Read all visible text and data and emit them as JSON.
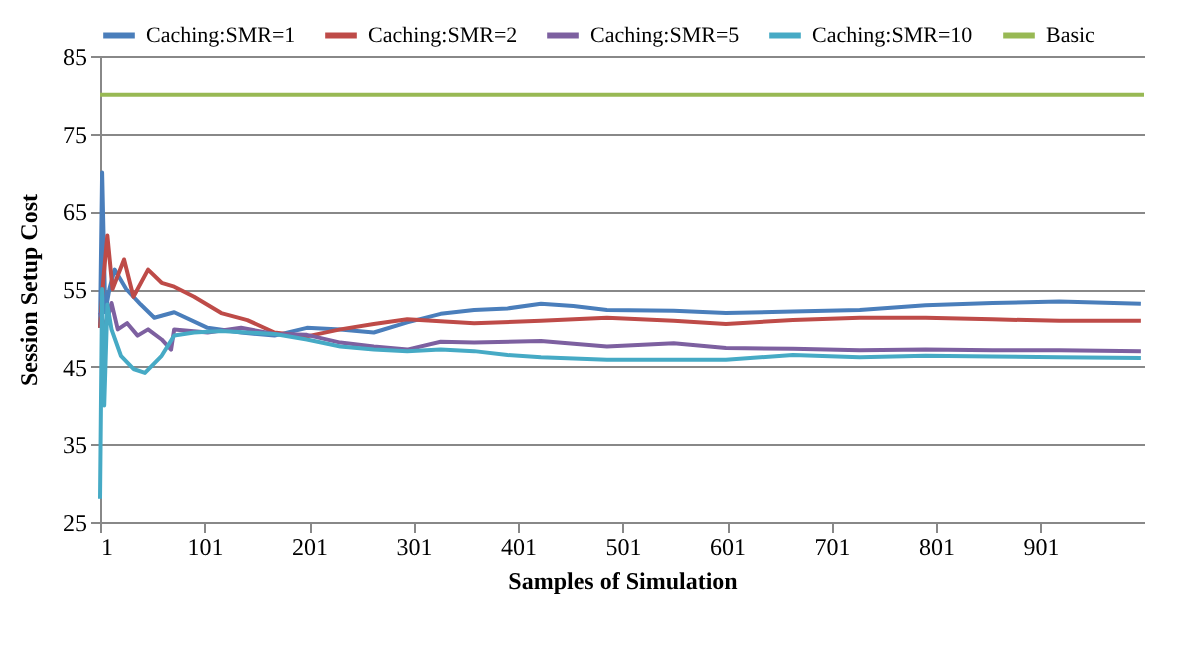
{
  "chart_data": {
    "type": "line",
    "xlabel": "Samples of Simulation",
    "ylabel": "Session Setup Cost",
    "xlim": [
      1,
      1000
    ],
    "ylim": [
      25,
      85
    ],
    "xticks": [
      1,
      101,
      201,
      301,
      401,
      501,
      601,
      701,
      801,
      901
    ],
    "yticks": [
      25,
      35,
      45,
      55,
      65,
      75,
      85
    ],
    "grid": "y",
    "legend": "top",
    "line_style": "solid",
    "marker": "none",
    "series": [
      {
        "name": "Caching:SMR=1",
        "color": "#4a7ebb",
        "x": [
          1,
          3,
          6,
          10,
          15,
          26,
          40,
          53,
          72,
          104,
          136,
          168,
          199,
          231,
          263,
          295,
          327,
          359,
          391,
          423,
          454,
          486,
          550,
          600,
          664,
          728,
          791,
          855,
          919,
          997
        ],
        "values": [
          50,
          70,
          52,
          55,
          57.5,
          55,
          53,
          51.3,
          52,
          50,
          49.4,
          49,
          50,
          49.8,
          49.4,
          50.7,
          51.8,
          52.3,
          52.5,
          53.1,
          52.8,
          52.3,
          52.2,
          51.9,
          52.1,
          52.3,
          52.9,
          53.2,
          53.4,
          53.1
        ]
      },
      {
        "name": "Caching:SMR=2",
        "color": "#be4b48",
        "x": [
          1,
          4,
          8,
          13,
          24,
          33,
          47,
          60,
          72,
          91,
          117,
          142,
          168,
          199,
          231,
          263,
          295,
          359,
          423,
          486,
          550,
          600,
          664,
          728,
          791,
          855,
          919,
          997
        ],
        "values": [
          50,
          56,
          61.9,
          55,
          58.8,
          54,
          57.5,
          55.8,
          55.3,
          54,
          51.9,
          51,
          49.4,
          48.9,
          49.8,
          50.5,
          51.1,
          50.6,
          50.9,
          51.3,
          50.9,
          50.5,
          51,
          51.3,
          51.3,
          51.1,
          50.9,
          50.9
        ]
      },
      {
        "name": "Caching:SMR=5",
        "color": "#7d60a0",
        "x": [
          1,
          6,
          12,
          18,
          27,
          37,
          47,
          60,
          69,
          72,
          104,
          136,
          168,
          199,
          231,
          263,
          295,
          327,
          359,
          423,
          486,
          550,
          600,
          664,
          728,
          791,
          855,
          919,
          997
        ],
        "values": [
          52,
          50,
          53.2,
          49.8,
          50.6,
          49,
          49.8,
          48.5,
          47.2,
          49.8,
          49.4,
          50,
          49.2,
          49.1,
          48.1,
          47.6,
          47.2,
          48.2,
          48.1,
          48.3,
          47.6,
          48,
          47.4,
          47.3,
          47.1,
          47.2,
          47.1,
          47.1,
          47
        ]
      },
      {
        "name": "Caching:SMR=10",
        "color": "#46aac5",
        "x": [
          1,
          3,
          5,
          8,
          12,
          21,
          33,
          44,
          60,
          72,
          91,
          117,
          142,
          168,
          199,
          231,
          263,
          295,
          327,
          359,
          391,
          423,
          486,
          550,
          600,
          664,
          728,
          791,
          855,
          919,
          997
        ],
        "values": [
          28,
          55,
          40,
          53,
          49.8,
          46.4,
          44.7,
          44.2,
          46.4,
          49,
          49.4,
          49.6,
          49.4,
          49.2,
          48.5,
          47.6,
          47.2,
          47,
          47.2,
          47,
          46.5,
          46.2,
          45.9,
          45.9,
          45.9,
          46.5,
          46.2,
          46.4,
          46.3,
          46.2,
          46.1
        ]
      },
      {
        "name": "Basic",
        "color": "#98b954",
        "x": [
          1,
          1000
        ],
        "values": [
          80,
          80
        ]
      }
    ]
  }
}
